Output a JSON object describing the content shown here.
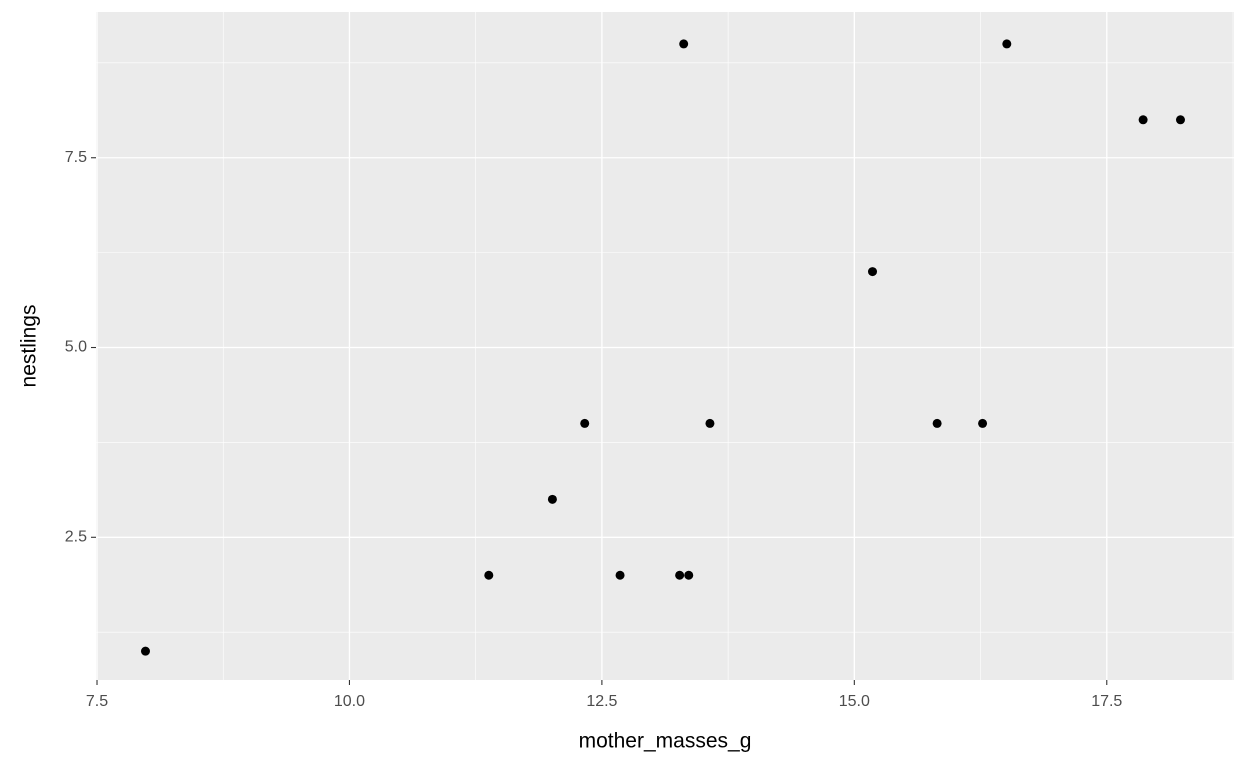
{
  "chart_data": {
    "type": "scatter",
    "x_label": "mother_masses_g",
    "y_label": "nestlings",
    "x": [
      7.98,
      11.38,
      12.01,
      12.33,
      12.68,
      13.27,
      13.36,
      13.31,
      13.57,
      15.18,
      15.82,
      16.27,
      16.51,
      17.86,
      18.23
    ],
    "values": [
      1,
      2,
      3,
      4,
      2,
      2,
      2,
      9,
      4,
      6,
      4,
      4,
      9,
      8,
      8
    ],
    "color": "#000000",
    "xlim": [
      7.49,
      18.76
    ],
    "ylim": [
      0.62,
      9.42
    ],
    "xticks": [
      7.5,
      {
        "value": 10,
        "label": "10.0"
      },
      12.5,
      {
        "value": 15,
        "label": "15.0"
      },
      17.5
    ],
    "yticks": [
      2.5,
      {
        "value": 5,
        "label": "5.0"
      },
      7.5
    ],
    "grid": true
  }
}
